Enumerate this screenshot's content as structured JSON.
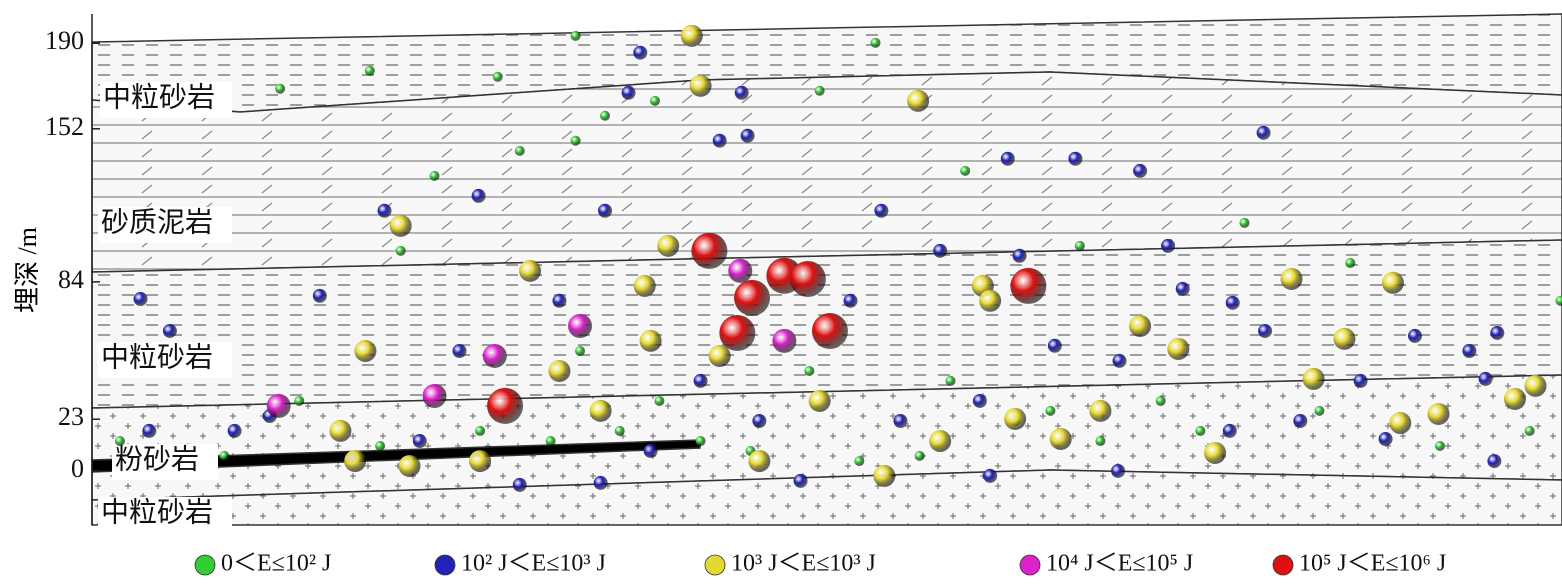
{
  "chart_data": {
    "type": "scatter",
    "ylabel": "埋深 /m",
    "ylim": [
      -24,
      203
    ],
    "yticks": [
      0,
      23,
      84,
      152,
      190
    ],
    "xlim": [
      0,
      100
    ],
    "layer_labels": [
      "中粒砂岩",
      "砂质泥岩",
      "中粒砂岩",
      "粉砂岩",
      "中粒砂岩"
    ],
    "series": [
      {
        "name": "0＜E≤10² J",
        "color": "#33cc33",
        "x": [
          32.9,
          53.3,
          18.9,
          27.6,
          38.3,
          34.9,
          32.9,
          49.5,
          59.4,
          78.4,
          67.2,
          85.6,
          99.9,
          21.0,
          12.8,
          23.3,
          29.1,
          62.8,
          65.2,
          75.4,
          91.7,
          68.6,
          41.4,
          44.8,
          35.9,
          31.2,
          26.4,
          19.6,
          14.1,
          52.2,
          56.3,
          38.6,
          33.2,
          48.8,
          83.5,
          97.8,
          9.0,
          1.9,
          72.7,
          58.4
        ],
        "values": [
          193.3,
          190.2,
          177.8,
          175.1,
          164.4,
          157.8,
          146.7,
          168.9,
          133.3,
          110.2,
          100.0,
          92.4,
          75.6,
          97.8,
          169.8,
          131.1,
          142.2,
          22.2,
          26.7,
          17.8,
          11.1,
          13.3,
          13.3,
          8.9,
          17.8,
          13.3,
          17.8,
          11.1,
          31.1,
          4.4,
          6.7,
          31.1,
          53.3,
          44.4,
          26.7,
          17.8,
          6.7,
          13.3,
          31.1,
          40.0
        ]
      },
      {
        "name": "10² J＜E≤10³ J",
        "color": "#2222bb",
        "x": [
          37.3,
          36.5,
          44.2,
          42.7,
          44.6,
          79.7,
          62.3,
          66.9,
          71.3,
          26.3,
          34.9,
          53.7,
          3.3,
          5.3,
          15.5,
          19.9,
          73.2,
          74.2,
          77.6,
          79.8,
          90.0,
          95.6,
          93.7,
          65.5,
          69.9,
          86.3,
          94.8,
          88.0,
          95.4,
          69.8,
          61.1,
          48.2,
          29.1,
          34.6,
          9.7,
          3.9,
          12.1,
          25.0,
          31.8,
          41.4,
          55.0,
          51.6,
          57.7,
          63.1,
          22.3,
          38.0,
          45.4,
          60.4,
          82.2,
          77.4
        ],
        "values": [
          185.8,
          168.0,
          168.0,
          146.7,
          148.9,
          150.2,
          138.7,
          138.7,
          133.3,
          122.2,
          115.6,
          115.6,
          76.4,
          62.2,
          77.8,
          115.6,
          100.0,
          80.9,
          74.7,
          62.2,
          60.0,
          61.3,
          53.3,
          55.6,
          48.9,
          40.0,
          40.9,
          14.2,
          4.4,
          0.0,
          -2.2,
          -4.4,
          -6.2,
          -5.3,
          17.8,
          17.8,
          24.4,
          53.3,
          75.6,
          40.0,
          22.2,
          75.6,
          97.8,
          95.6,
          13.3,
          8.9,
          22.2,
          31.1,
          22.2,
          17.8
        ]
      },
      {
        "name": "10³ J＜E≤10³ J",
        "color": "#e6d833",
        "x": [
          40.8,
          41.4,
          56.2,
          21.0,
          39.2,
          29.8,
          37.6,
          81.6,
          88.5,
          60.6,
          71.3,
          73.9,
          85.2,
          83.1,
          98.2,
          96.8,
          91.6,
          89.0,
          76.4,
          65.9,
          68.6,
          62.8,
          53.9,
          34.6,
          18.6,
          16.9,
          17.9,
          21.6,
          26.4,
          31.8,
          38.0,
          42.7,
          49.5,
          57.7,
          61.1,
          45.4
        ],
        "values": [
          193.3,
          171.1,
          164.4,
          108.9,
          100.0,
          88.9,
          82.2,
          85.3,
          83.6,
          82.2,
          64.4,
          54.2,
          58.7,
          40.9,
          37.8,
          32.0,
          25.3,
          21.3,
          8.0,
          14.2,
          26.7,
          23.1,
          -2.2,
          26.7,
          53.3,
          17.8,
          4.4,
          2.2,
          4.4,
          44.4,
          57.8,
          51.1,
          31.1,
          13.3,
          75.6,
          4.4
        ]
      },
      {
        "name": "10⁴ J＜E≤10⁵ J",
        "color": "#dd22cc",
        "x": [
          44.1,
          27.4,
          12.7,
          23.3,
          47.1,
          33.2
        ],
        "values": [
          88.9,
          51.1,
          28.9,
          33.3,
          57.8,
          64.4
        ]
      },
      {
        "name": "10⁵ J＜E≤10⁶ J",
        "color": "#dd1111",
        "x": [
          42.0,
          47.1,
          48.7,
          44.9,
          43.9,
          50.2,
          63.7,
          28.1
        ],
        "values": [
          97.8,
          86.7,
          85.3,
          76.9,
          61.3,
          62.2,
          82.2,
          28.9
        ]
      }
    ]
  }
}
